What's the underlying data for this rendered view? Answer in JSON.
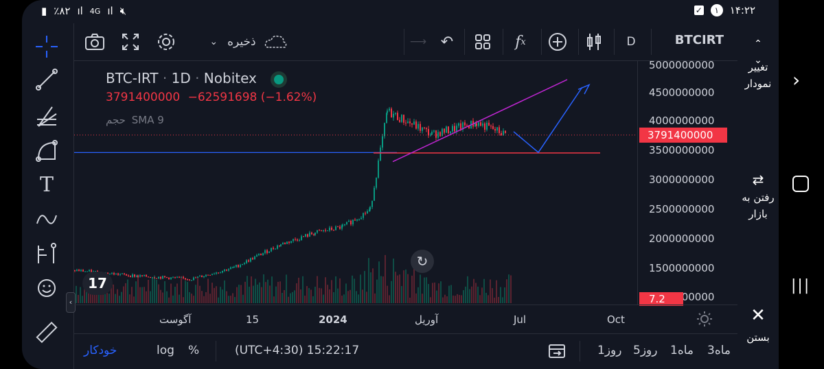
{
  "status_bar": {
    "battery": "٪۸۲",
    "network": "4G",
    "notification_count": "۱",
    "time": "۱۴:۲۲"
  },
  "toolbar": {
    "save_label": "ذخیره",
    "interval": "D",
    "symbol": "BTCIRT"
  },
  "legend": {
    "symbol": "BTC-IRT",
    "interval": "1D",
    "exchange": "Nobitex",
    "price": "3791400000",
    "change": "−62591698 (−1.62%)",
    "indicator": "SMA 9",
    "volume_label": "حجم"
  },
  "price_axis": {
    "labels": [
      "5000000000",
      "4500000000",
      "4000000000",
      "3500000000",
      "3000000000",
      "2500000000",
      "2000000000",
      "1500000000",
      "1000000000"
    ],
    "last_price_tag": "3791400000",
    "volume_tag": "7.2"
  },
  "time_axis": {
    "labels": [
      "آگوست",
      "15",
      "2024",
      "آوریل",
      "Jul",
      "Oct"
    ]
  },
  "bottom_bar": {
    "auto": "خودکار",
    "log": "log",
    "percent": "%",
    "timezone_time": "(UTC+4:30) 15:22:17",
    "ranges": [
      "1روز",
      "5روز",
      "1ماه",
      "3ماه"
    ]
  },
  "right_panel": {
    "change_chart": "تغییر\nنمودار",
    "go_market": "رفتن به\nبازار",
    "close": "بستن"
  },
  "colors": {
    "background": "#131722",
    "up": "#089981",
    "down": "#f23645",
    "trendline_purple": "#c026d3",
    "projection_blue": "#2962ff"
  },
  "chart_data": {
    "type": "candlestick",
    "symbol": "BTC-IRT",
    "interval": "1D",
    "y_range": [
      1000000000,
      5000000000
    ],
    "last_price": 3791400000,
    "approx_closes": [
      {
        "x": "Jul 2023",
        "y": 1450000000
      },
      {
        "x": "Aug 2023",
        "y": 1350000000
      },
      {
        "x": "Sep 2023",
        "y": 1300000000
      },
      {
        "x": "Oct 2023",
        "y": 1500000000
      },
      {
        "x": "Nov 2023",
        "y": 1900000000
      },
      {
        "x": "Dec 2023",
        "y": 2100000000
      },
      {
        "x": "Jan 2024",
        "y": 2200000000
      },
      {
        "x": "Feb 2024",
        "y": 2500000000
      },
      {
        "x": "Mar 2024",
        "y": 4200000000
      },
      {
        "x": "Apr 2024",
        "y": 3800000000
      },
      {
        "x": "May 2024",
        "y": 4000000000
      },
      {
        "x": "Jun 2024",
        "y": 3791400000
      }
    ]
  }
}
